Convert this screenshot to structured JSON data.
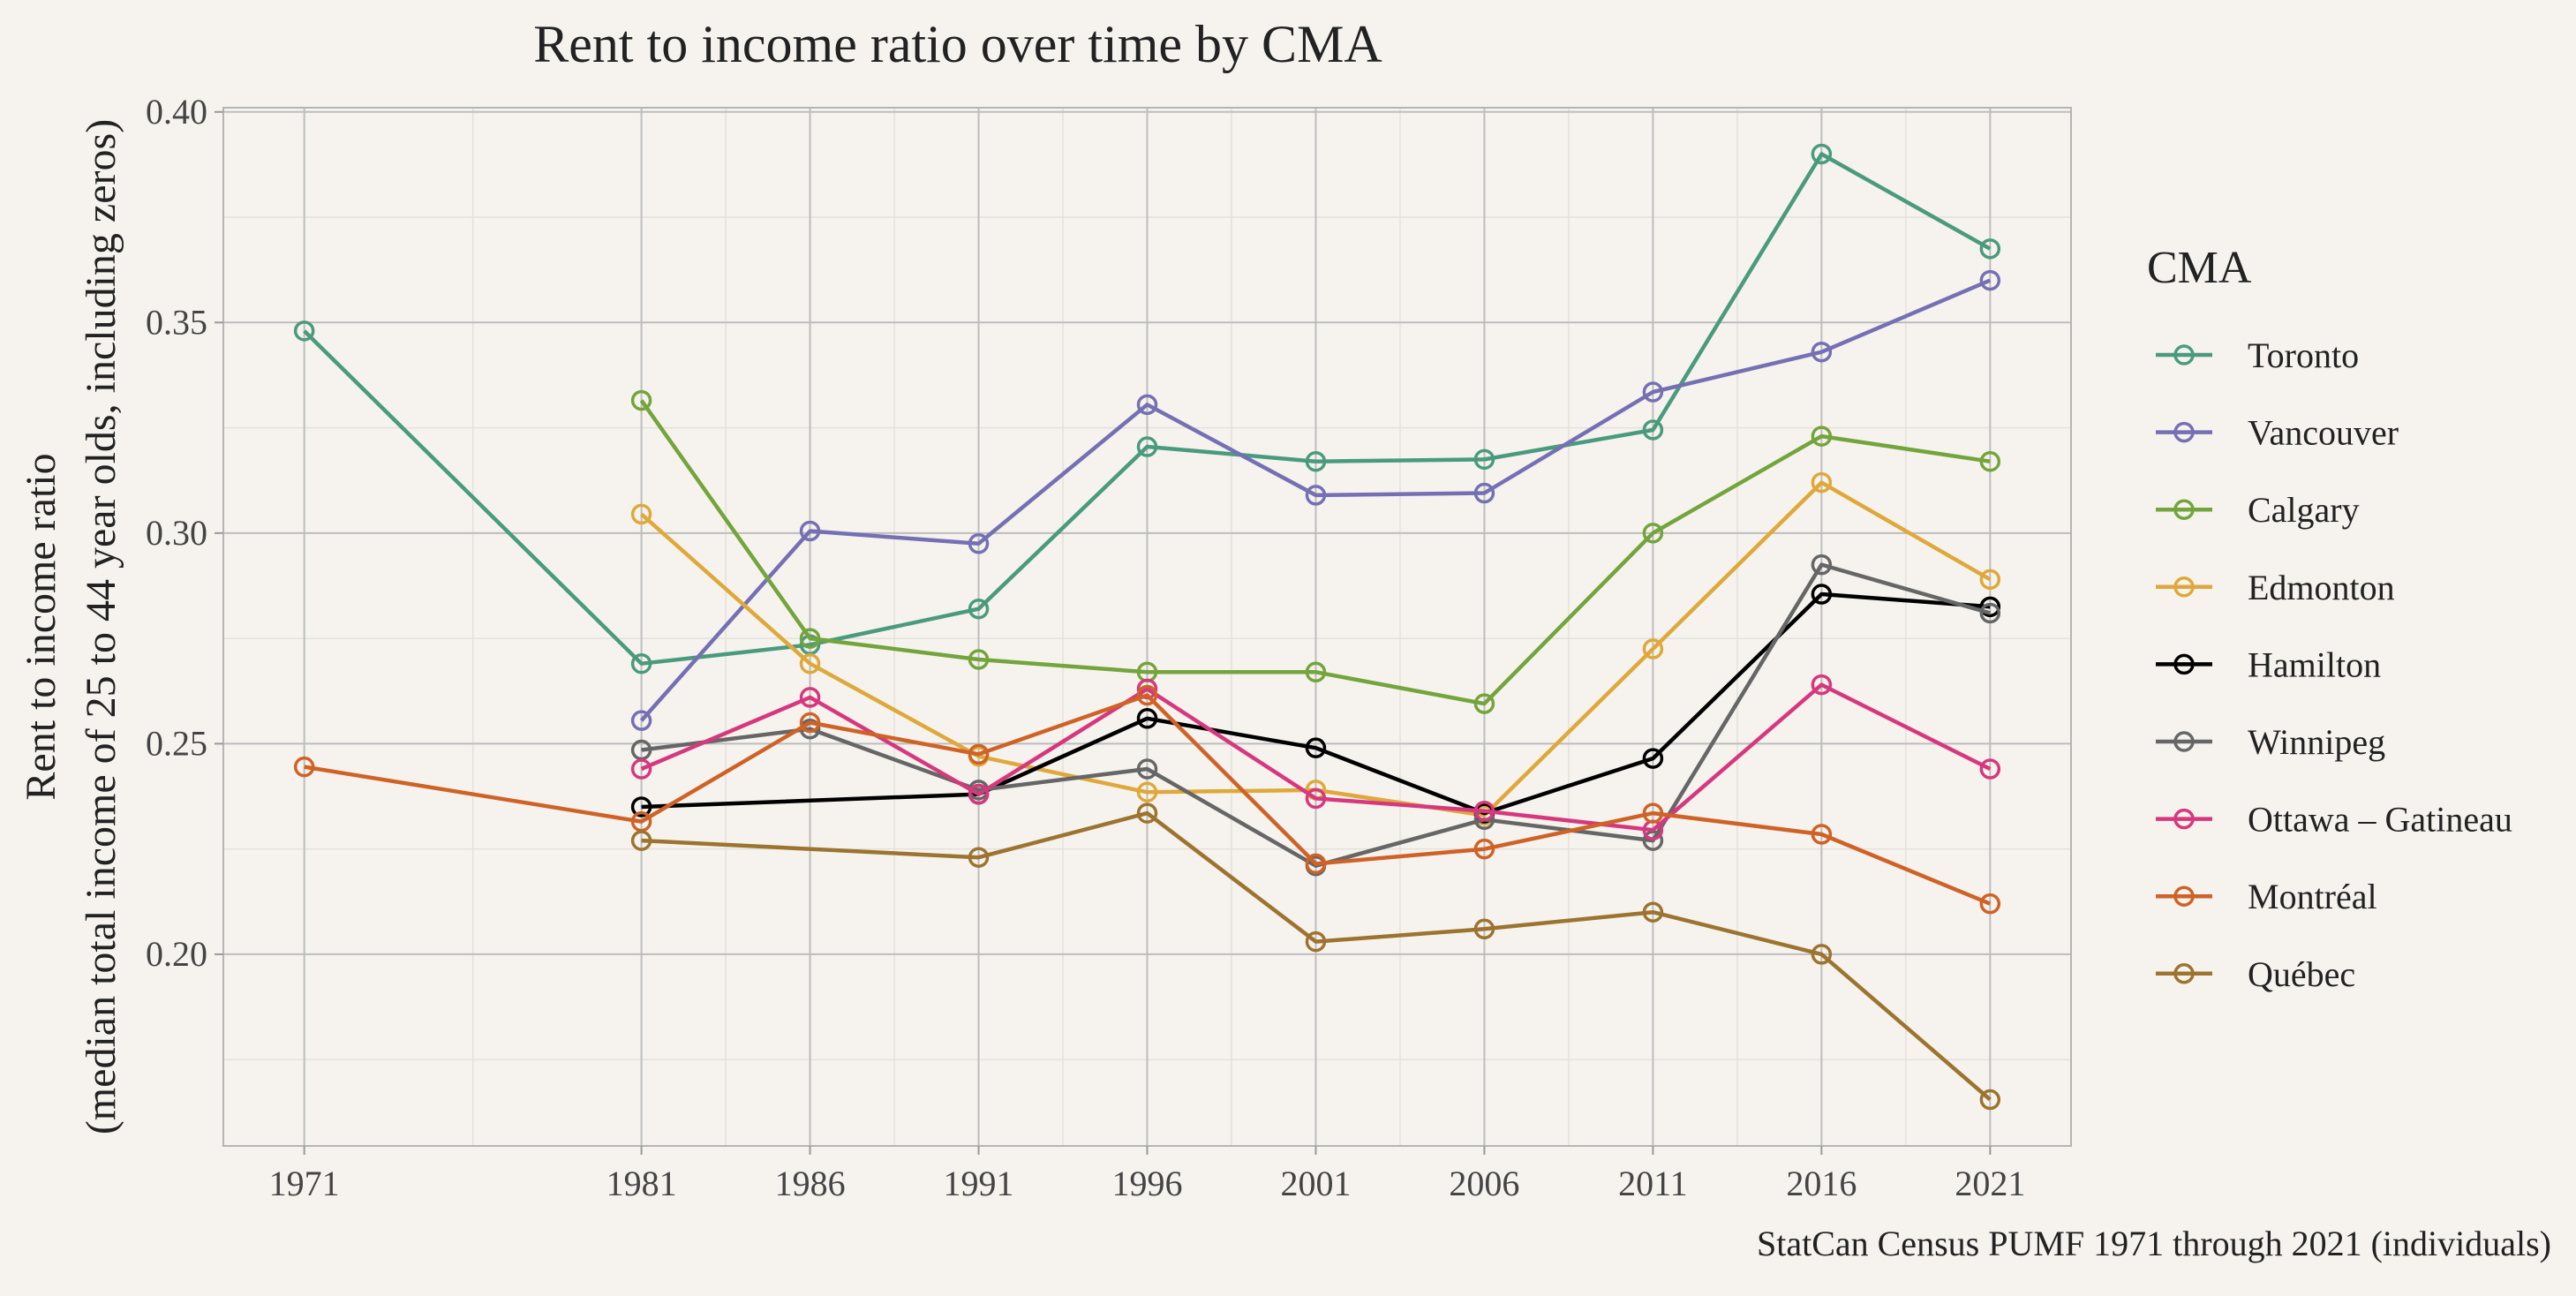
{
  "chart_data": {
    "type": "line",
    "title": "Rent to income ratio over time by CMA",
    "ylabel_line1": "Rent to income ratio",
    "ylabel_line2": "(median total income of 25 to 44 year olds, including zeros)",
    "xlabel": "",
    "caption": "StatCan Census PUMF 1971 through 2021 (individuals)",
    "legend_title": "CMA",
    "legend_position": "right",
    "grid": true,
    "x_ticks": [
      1971,
      1981,
      1986,
      1991,
      1996,
      2001,
      2006,
      2011,
      2016,
      2021
    ],
    "x_tick_labels": [
      "1971",
      "1981",
      "1986",
      "1991",
      "1996",
      "2001",
      "2006",
      "2011",
      "2016",
      "2021"
    ],
    "xlim": [
      1968.6,
      2023.4
    ],
    "y_ticks": [
      0.2,
      0.25,
      0.3,
      0.35,
      0.4
    ],
    "y_tick_labels": [
      "0.20",
      "0.25",
      "0.30",
      "0.35",
      "0.40"
    ],
    "ylim": [
      0.1545,
      0.401
    ],
    "series": [
      {
        "name": "Toronto",
        "color": "#4a9b7e",
        "points": [
          [
            1971,
            0.348
          ],
          [
            1981,
            0.269
          ],
          [
            1986,
            0.2735
          ],
          [
            1991,
            0.282
          ],
          [
            1996,
            0.3205
          ],
          [
            2001,
            0.317
          ],
          [
            2006,
            0.3175
          ],
          [
            2011,
            0.3245
          ],
          [
            2016,
            0.39
          ],
          [
            2021,
            0.3675
          ]
        ]
      },
      {
        "name": "Vancouver",
        "color": "#7570b3",
        "points": [
          [
            1981,
            0.2555
          ],
          [
            1986,
            0.3005
          ],
          [
            1991,
            0.2975
          ],
          [
            1996,
            0.3305
          ],
          [
            2001,
            0.309
          ],
          [
            2006,
            0.3095
          ],
          [
            2011,
            0.3335
          ],
          [
            2016,
            0.343
          ],
          [
            2021,
            0.36
          ]
        ]
      },
      {
        "name": "Calgary",
        "color": "#74a43c",
        "points": [
          [
            1981,
            0.3315
          ],
          [
            1986,
            0.275
          ],
          [
            1991,
            0.27
          ],
          [
            1996,
            0.267
          ],
          [
            2001,
            0.267
          ],
          [
            2006,
            0.2595
          ],
          [
            2011,
            0.3
          ],
          [
            2016,
            0.323
          ],
          [
            2021,
            0.317
          ]
        ]
      },
      {
        "name": "Edmonton",
        "color": "#dea93a",
        "points": [
          [
            1981,
            0.3045
          ],
          [
            1986,
            0.269
          ],
          [
            1991,
            0.247
          ],
          [
            1996,
            0.2385
          ],
          [
            2001,
            0.239
          ],
          [
            2006,
            0.233
          ],
          [
            2011,
            0.2725
          ],
          [
            2016,
            0.312
          ],
          [
            2021,
            0.289
          ]
        ]
      },
      {
        "name": "Hamilton",
        "color": "#000000",
        "points": [
          [
            1981,
            0.235
          ],
          [
            1991,
            0.238
          ],
          [
            1996,
            0.256
          ],
          [
            2001,
            0.249
          ],
          [
            2006,
            0.2335
          ],
          [
            2011,
            0.2465
          ],
          [
            2016,
            0.2855
          ],
          [
            2021,
            0.2825
          ]
        ]
      },
      {
        "name": "Winnipeg",
        "color": "#666666",
        "points": [
          [
            1981,
            0.2485
          ],
          [
            1986,
            0.2535
          ],
          [
            1991,
            0.239
          ],
          [
            1996,
            0.244
          ],
          [
            2001,
            0.221
          ],
          [
            2006,
            0.232
          ],
          [
            2011,
            0.227
          ],
          [
            2016,
            0.2925
          ],
          [
            2021,
            0.281
          ]
        ]
      },
      {
        "name": "Ottawa – Gatineau",
        "color": "#d6387e",
        "points": [
          [
            1981,
            0.244
          ],
          [
            1986,
            0.261
          ],
          [
            1991,
            0.238
          ],
          [
            1996,
            0.263
          ],
          [
            2001,
            0.237
          ],
          [
            2006,
            0.234
          ],
          [
            2011,
            0.2295
          ],
          [
            2016,
            0.264
          ],
          [
            2021,
            0.244
          ]
        ]
      },
      {
        "name": "Montréal",
        "color": "#cf6226",
        "points": [
          [
            1971,
            0.2445
          ],
          [
            1981,
            0.2315
          ],
          [
            1986,
            0.255
          ],
          [
            1991,
            0.2475
          ],
          [
            1996,
            0.2615
          ],
          [
            2001,
            0.2215
          ],
          [
            2006,
            0.225
          ],
          [
            2011,
            0.2335
          ],
          [
            2016,
            0.2285
          ],
          [
            2021,
            0.212
          ]
        ]
      },
      {
        "name": "Québec",
        "color": "#9c7430",
        "points": [
          [
            1981,
            0.227
          ],
          [
            1991,
            0.223
          ],
          [
            1996,
            0.2335
          ],
          [
            2001,
            0.203
          ],
          [
            2006,
            0.206
          ],
          [
            2011,
            0.21
          ],
          [
            2016,
            0.2
          ],
          [
            2021,
            0.1655
          ]
        ]
      }
    ]
  }
}
